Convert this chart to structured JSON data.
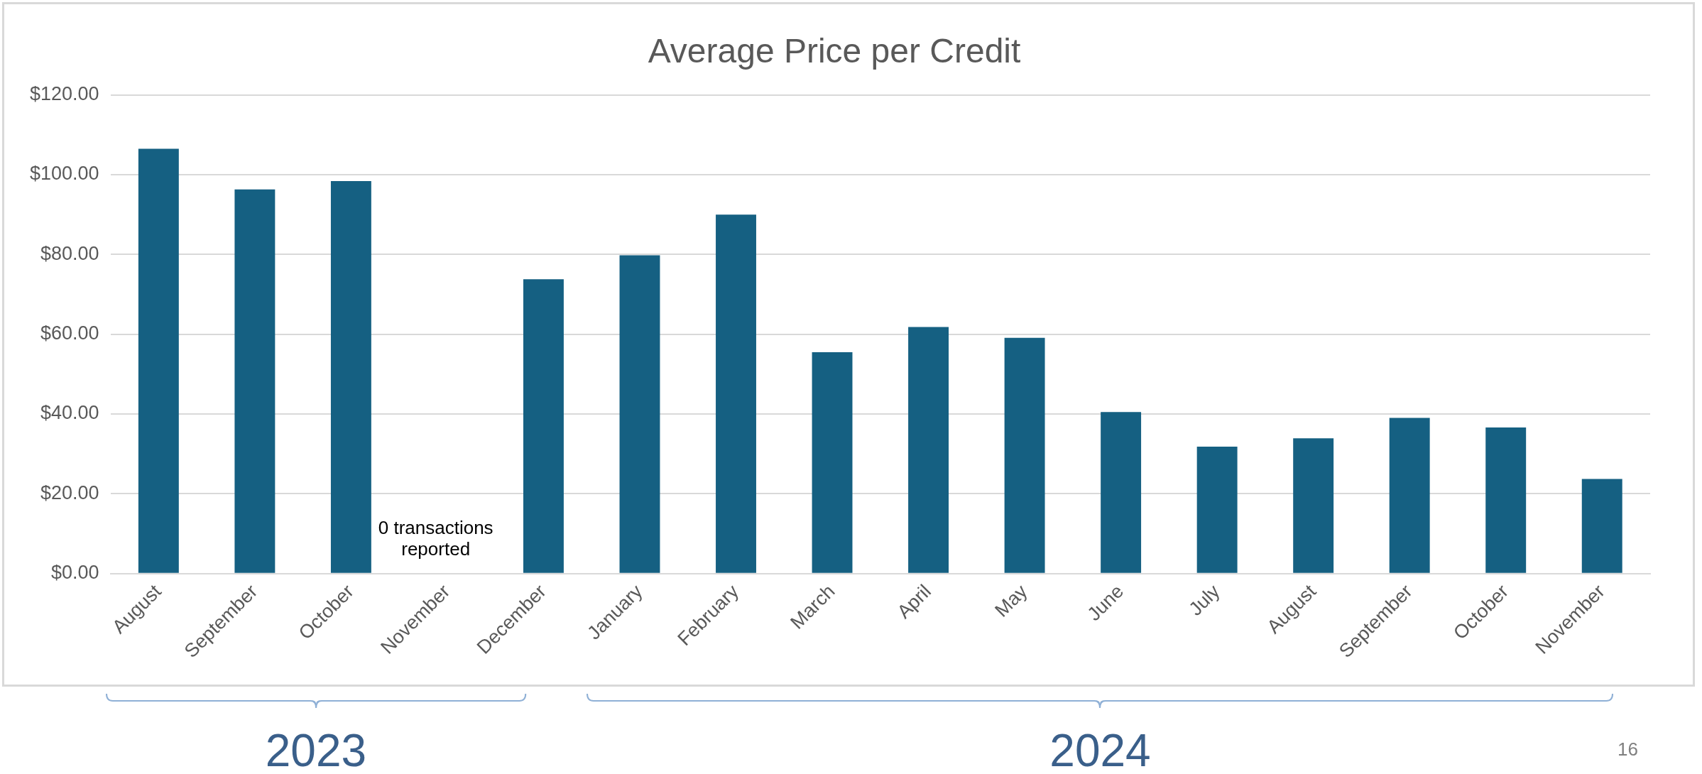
{
  "chart_data": {
    "type": "bar",
    "title": "Average Price per Credit",
    "categories": [
      "August",
      "September",
      "October",
      "November",
      "December",
      "January",
      "February",
      "March",
      "April",
      "May",
      "June",
      "July",
      "August",
      "September",
      "October",
      "November"
    ],
    "values": [
      106.5,
      96.3,
      98.4,
      null,
      73.8,
      79.8,
      90.0,
      55.5,
      61.8,
      59.1,
      40.5,
      31.8,
      33.9,
      39.0,
      36.6,
      23.7
    ],
    "color": "#156082",
    "ylim": [
      0,
      120
    ],
    "yticks": [
      {
        "value": 0,
        "label": "$0.00"
      },
      {
        "value": 20,
        "label": "$20.00"
      },
      {
        "value": 40,
        "label": "$40.00"
      },
      {
        "value": 60,
        "label": "$60.00"
      },
      {
        "value": 80,
        "label": "$80.00"
      },
      {
        "value": 100,
        "label": "$100.00"
      },
      {
        "value": 120,
        "label": "$120.00"
      }
    ],
    "grid": "y",
    "legend": false,
    "annotations": [
      "0 transactions reported",
      "2023",
      "2024",
      "16"
    ]
  }
}
